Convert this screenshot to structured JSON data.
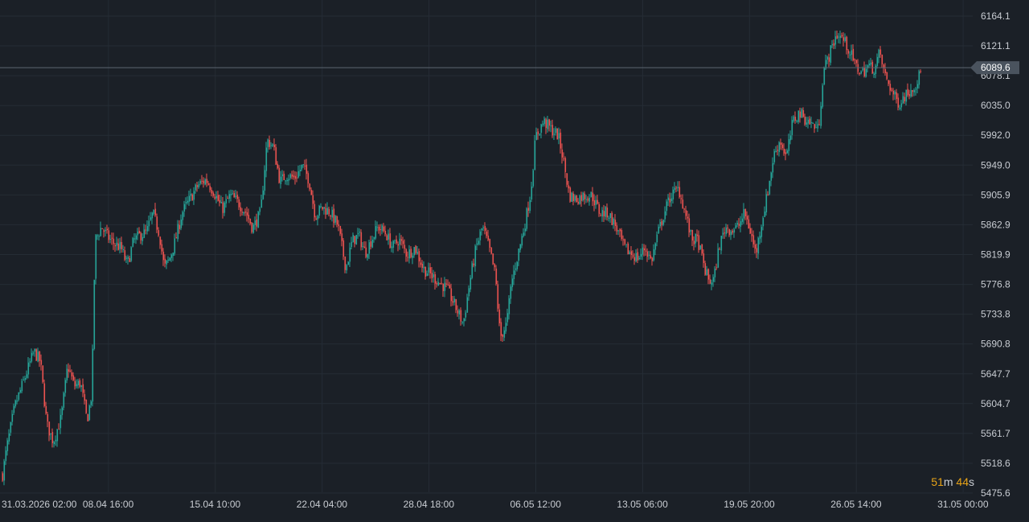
{
  "chart_data": {
    "type": "candlestick",
    "y_axis": {
      "ticks": [
        "6164.1",
        "6121.1",
        "6078.1",
        "6035.0",
        "5992.0",
        "5949.0",
        "5905.9",
        "5862.9",
        "5819.9",
        "5776.8",
        "5733.8",
        "5690.8",
        "5647.7",
        "5604.7",
        "5561.7",
        "5518.6",
        "5475.6"
      ],
      "range": [
        5475.6,
        6164.1
      ]
    },
    "x_axis": {
      "ticks": [
        "31.03.2026 02:00",
        "08.04 16:00",
        "15.04 10:00",
        "22.04 04:00",
        "28.04 18:00",
        "06.05 12:00",
        "13.05 06:00",
        "19.05 20:00",
        "26.05 14:00",
        "31.05 00:00"
      ]
    },
    "last_price": "6089.6",
    "close_path": [
      [
        0,
        5480
      ],
      [
        8,
        5540
      ],
      [
        18,
        5600
      ],
      [
        30,
        5640
      ],
      [
        42,
        5680
      ],
      [
        50,
        5665
      ],
      [
        58,
        5575
      ],
      [
        66,
        5550
      ],
      [
        76,
        5585
      ],
      [
        84,
        5660
      ],
      [
        92,
        5630
      ],
      [
        100,
        5635
      ],
      [
        108,
        5580
      ],
      [
        114,
        5620
      ],
      [
        118,
        5840
      ],
      [
        126,
        5860
      ],
      [
        134,
        5845
      ],
      [
        142,
        5835
      ],
      [
        150,
        5830
      ],
      [
        158,
        5805
      ],
      [
        166,
        5840
      ],
      [
        174,
        5848
      ],
      [
        182,
        5852
      ],
      [
        190,
        5880
      ],
      [
        198,
        5850
      ],
      [
        204,
        5800
      ],
      [
        210,
        5812
      ],
      [
        218,
        5840
      ],
      [
        226,
        5880
      ],
      [
        236,
        5900
      ],
      [
        246,
        5920
      ],
      [
        256,
        5928
      ],
      [
        266,
        5910
      ],
      [
        276,
        5885
      ],
      [
        286,
        5905
      ],
      [
        296,
        5895
      ],
      [
        306,
        5880
      ],
      [
        314,
        5858
      ],
      [
        324,
        5880
      ],
      [
        332,
        5985
      ],
      [
        340,
        5975
      ],
      [
        348,
        5925
      ],
      [
        356,
        5935
      ],
      [
        366,
        5930
      ],
      [
        376,
        5948
      ],
      [
        384,
        5928
      ],
      [
        392,
        5875
      ],
      [
        400,
        5888
      ],
      [
        410,
        5882
      ],
      [
        420,
        5862
      ],
      [
        430,
        5800
      ],
      [
        438,
        5840
      ],
      [
        446,
        5848
      ],
      [
        454,
        5822
      ],
      [
        462,
        5842
      ],
      [
        470,
        5860
      ],
      [
        480,
        5850
      ],
      [
        488,
        5830
      ],
      [
        496,
        5842
      ],
      [
        506,
        5820
      ],
      [
        516,
        5830
      ],
      [
        526,
        5800
      ],
      [
        536,
        5790
      ],
      [
        546,
        5780
      ],
      [
        556,
        5770
      ],
      [
        566,
        5745
      ],
      [
        576,
        5720
      ],
      [
        584,
        5780
      ],
      [
        592,
        5830
      ],
      [
        600,
        5860
      ],
      [
        608,
        5830
      ],
      [
        616,
        5790
      ],
      [
        622,
        5700
      ],
      [
        630,
        5720
      ],
      [
        636,
        5780
      ],
      [
        644,
        5820
      ],
      [
        652,
        5860
      ],
      [
        660,
        5910
      ],
      [
        666,
        5990
      ],
      [
        676,
        6012
      ],
      [
        686,
        6000
      ],
      [
        694,
        5992
      ],
      [
        700,
        5960
      ],
      [
        708,
        5905
      ],
      [
        716,
        5900
      ],
      [
        726,
        5905
      ],
      [
        736,
        5905
      ],
      [
        746,
        5880
      ],
      [
        756,
        5880
      ],
      [
        766,
        5860
      ],
      [
        776,
        5830
      ],
      [
        786,
        5820
      ],
      [
        794,
        5815
      ],
      [
        802,
        5830
      ],
      [
        810,
        5810
      ],
      [
        818,
        5850
      ],
      [
        826,
        5880
      ],
      [
        834,
        5905
      ],
      [
        844,
        5915
      ],
      [
        852,
        5880
      ],
      [
        860,
        5842
      ],
      [
        868,
        5840
      ],
      [
        876,
        5800
      ],
      [
        882,
        5780
      ],
      [
        888,
        5785
      ],
      [
        894,
        5830
      ],
      [
        902,
        5860
      ],
      [
        910,
        5855
      ],
      [
        918,
        5860
      ],
      [
        926,
        5880
      ],
      [
        934,
        5850
      ],
      [
        940,
        5820
      ],
      [
        946,
        5860
      ],
      [
        954,
        5905
      ],
      [
        962,
        5962
      ],
      [
        970,
        5985
      ],
      [
        978,
        5960
      ],
      [
        986,
        6012
      ],
      [
        994,
        6025
      ],
      [
        1002,
        6015
      ],
      [
        1010,
        6008
      ],
      [
        1018,
        6000
      ],
      [
        1024,
        6085
      ],
      [
        1032,
        6110
      ],
      [
        1040,
        6138
      ],
      [
        1048,
        6132
      ],
      [
        1056,
        6115
      ],
      [
        1064,
        6092
      ],
      [
        1072,
        6082
      ],
      [
        1080,
        6092
      ],
      [
        1088,
        6088
      ],
      [
        1094,
        6112
      ],
      [
        1100,
        6080
      ],
      [
        1106,
        6065
      ],
      [
        1112,
        6048
      ],
      [
        1118,
        6038
      ],
      [
        1124,
        6048
      ],
      [
        1132,
        6058
      ],
      [
        1140,
        6068
      ],
      [
        1146,
        6086
      ]
    ]
  },
  "timer": {
    "minutes": "51",
    "min_unit": "m",
    "seconds": "44",
    "sec_unit": "s"
  }
}
